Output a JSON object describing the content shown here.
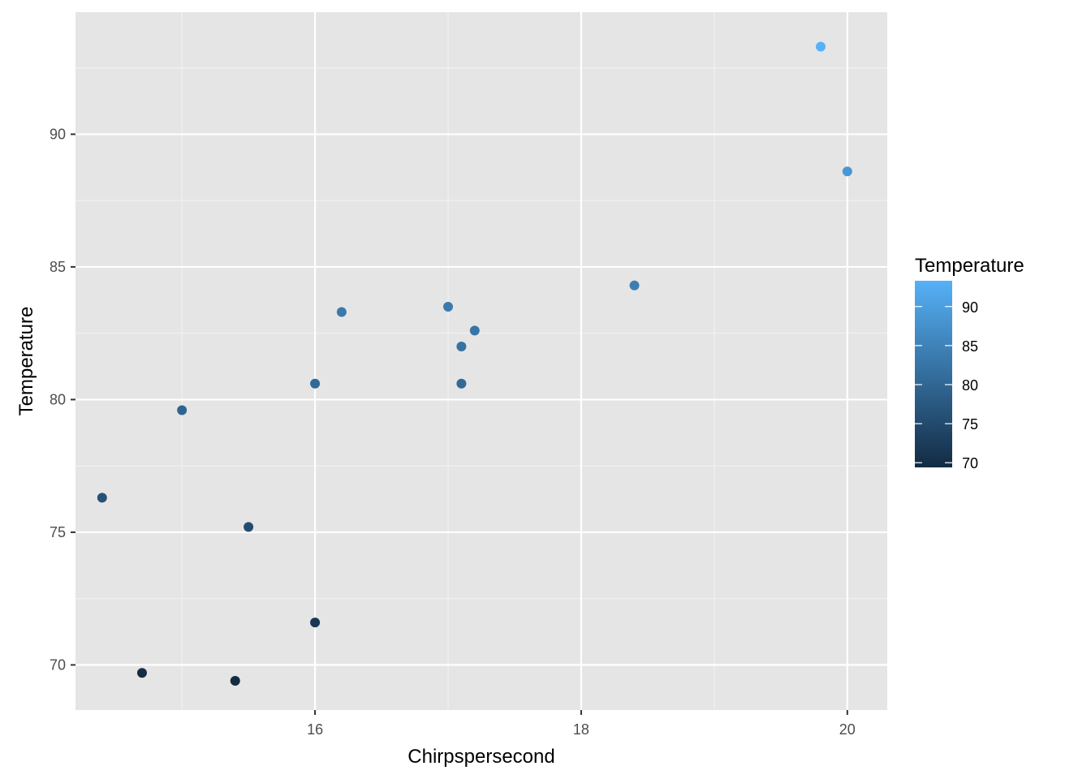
{
  "chart_data": {
    "type": "scatter",
    "title": "",
    "xlabel": "Chirpspersecond",
    "ylabel": "Temperature",
    "xlim": [
      14.2,
      20.3
    ],
    "ylim": [
      68.3,
      94.6
    ],
    "x_ticks": [
      16,
      18,
      20
    ],
    "y_ticks": [
      70,
      75,
      80,
      85,
      90
    ],
    "grid": true,
    "legend": {
      "title": "Temperature",
      "placement": "right",
      "type": "colorbar",
      "range": [
        69.4,
        93.3
      ],
      "ticks": [
        70,
        75,
        80,
        85,
        90
      ],
      "color_low": "#132B43",
      "color_high": "#56B1F7"
    },
    "points": [
      {
        "x": 14.4,
        "y": 76.3
      },
      {
        "x": 14.7,
        "y": 69.7
      },
      {
        "x": 15.0,
        "y": 79.6
      },
      {
        "x": 15.4,
        "y": 69.4
      },
      {
        "x": 15.5,
        "y": 75.2
      },
      {
        "x": 16.0,
        "y": 71.6
      },
      {
        "x": 16.0,
        "y": 80.6
      },
      {
        "x": 16.2,
        "y": 83.3
      },
      {
        "x": 17.0,
        "y": 83.5
      },
      {
        "x": 17.1,
        "y": 82.0
      },
      {
        "x": 17.1,
        "y": 80.6
      },
      {
        "x": 17.2,
        "y": 82.6
      },
      {
        "x": 18.4,
        "y": 84.3
      },
      {
        "x": 19.8,
        "y": 93.3
      },
      {
        "x": 20.0,
        "y": 88.6
      }
    ]
  },
  "colors": {
    "panel_background": "#e5e5e5",
    "grid_major": "#ffffff",
    "grid_minor": "#f2f2f2"
  }
}
